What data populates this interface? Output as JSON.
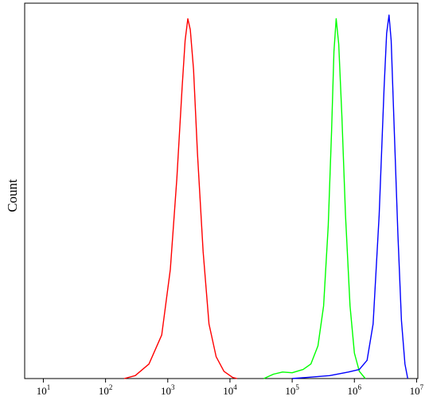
{
  "chart_data": {
    "type": "line",
    "ylabel": "Count",
    "xscale": "log",
    "xlim": [
      10,
      10000000
    ],
    "ylim": [
      0,
      1.0
    ],
    "x_ticks": [
      {
        "value": 10,
        "base": "10",
        "exp": "1"
      },
      {
        "value": 100,
        "base": "10",
        "exp": "2"
      },
      {
        "value": 1000,
        "base": "10",
        "exp": "3"
      },
      {
        "value": 10000,
        "base": "10",
        "exp": "4"
      },
      {
        "value": 100000,
        "base": "10",
        "exp": "5"
      },
      {
        "value": 1000000,
        "base": "10",
        "exp": "6"
      },
      {
        "value": 10000000,
        "base": "10",
        "exp": "7"
      }
    ],
    "series": [
      {
        "color": "#ff0000",
        "points": [
          [
            200,
            0
          ],
          [
            300,
            0.008
          ],
          [
            500,
            0.04
          ],
          [
            800,
            0.12
          ],
          [
            1100,
            0.3
          ],
          [
            1400,
            0.55
          ],
          [
            1700,
            0.8
          ],
          [
            1900,
            0.93
          ],
          [
            2100,
            0.99
          ],
          [
            2300,
            0.96
          ],
          [
            2600,
            0.85
          ],
          [
            3000,
            0.62
          ],
          [
            3700,
            0.35
          ],
          [
            4600,
            0.15
          ],
          [
            6000,
            0.06
          ],
          [
            8000,
            0.02
          ],
          [
            11000,
            0.003
          ],
          [
            13000,
            0
          ]
        ]
      },
      {
        "color": "#00ff00",
        "points": [
          [
            35000,
            0
          ],
          [
            50000,
            0.012
          ],
          [
            70000,
            0.018
          ],
          [
            100000,
            0.016
          ],
          [
            150000,
            0.025
          ],
          [
            200000,
            0.04
          ],
          [
            260000,
            0.09
          ],
          [
            320000,
            0.2
          ],
          [
            380000,
            0.42
          ],
          [
            430000,
            0.68
          ],
          [
            470000,
            0.9
          ],
          [
            510000,
            0.99
          ],
          [
            560000,
            0.92
          ],
          [
            630000,
            0.72
          ],
          [
            720000,
            0.45
          ],
          [
            850000,
            0.2
          ],
          [
            1000000,
            0.07
          ],
          [
            1200000,
            0.02
          ],
          [
            1500000,
            0
          ]
        ]
      },
      {
        "color": "#0000ff",
        "points": [
          [
            100000,
            0
          ],
          [
            200000,
            0.004
          ],
          [
            400000,
            0.008
          ],
          [
            800000,
            0.018
          ],
          [
            1200000,
            0.025
          ],
          [
            1600000,
            0.05
          ],
          [
            2000000,
            0.15
          ],
          [
            2500000,
            0.45
          ],
          [
            3000000,
            0.8
          ],
          [
            3300000,
            0.95
          ],
          [
            3600000,
            1.0
          ],
          [
            3900000,
            0.93
          ],
          [
            4300000,
            0.72
          ],
          [
            5000000,
            0.4
          ],
          [
            5700000,
            0.16
          ],
          [
            6500000,
            0.04
          ],
          [
            7200000,
            0
          ]
        ]
      }
    ]
  }
}
